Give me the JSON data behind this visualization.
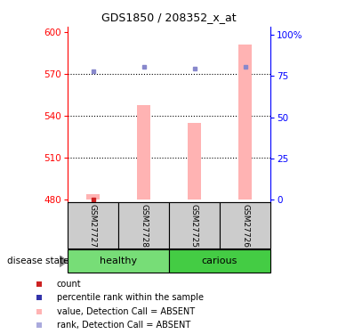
{
  "title": "GDS1850 / 208352_x_at",
  "samples": [
    "GSM27727",
    "GSM27728",
    "GSM27725",
    "GSM27726"
  ],
  "groups": [
    "healthy",
    "healthy",
    "carious",
    "carious"
  ],
  "ylim_left": [
    478,
    604
  ],
  "yticks_left": [
    480,
    510,
    540,
    570,
    600
  ],
  "ylim_right": [
    -1.5,
    105
  ],
  "yticks_right": [
    0,
    25,
    50,
    75,
    100
  ],
  "yticklabels_right": [
    "0",
    "25",
    "50",
    "75",
    "100%"
  ],
  "bar_values": [
    484,
    548,
    535,
    591
  ],
  "rank_values": [
    572,
    575,
    574,
    575
  ],
  "count_values": [
    480,
    480,
    480,
    480
  ],
  "bar_color": "#ffb3b3",
  "rank_dot_color": "#8888cc",
  "count_color": "#cc2222",
  "base_value": 480,
  "bar_width": 0.25,
  "grid_ticks": [
    510,
    540,
    570
  ],
  "healthy_color": "#77dd77",
  "carious_color": "#44cc44"
}
